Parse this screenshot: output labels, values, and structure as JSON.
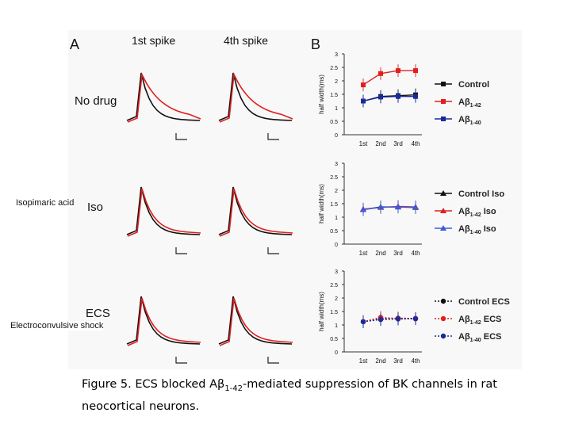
{
  "page": {
    "annotations": {
      "iso": "Isopimaric acid",
      "ecs": "Electroconvulsive shock"
    },
    "caption": {
      "prefix": "Figure 5. ECS blocked A",
      "beta": "β",
      "sub": "1-42",
      "suffix": "-mediated suppression of BK channels in rat",
      "line2": "neocortical neurons."
    }
  },
  "chart_data": [
    {
      "type": "line",
      "panel": "A",
      "description_labels": {
        "panel_letter": "A",
        "col1": "1st spike",
        "col2": "4th spike"
      },
      "row_labels": [
        "No drug",
        "Iso",
        "ECS"
      ],
      "note": "Example action potential waveforms (black = control, red = Aβ1-42)"
    },
    {
      "type": "line",
      "panel": "B1",
      "panel_letter": "B",
      "categories": [
        "1st",
        "2nd",
        "3rd",
        "4th"
      ],
      "ylabel": "half width(ms)",
      "ylim": [
        0,
        3
      ],
      "yticks": [
        "0",
        "0.5",
        "1",
        "1.5",
        "2",
        "2.5",
        "3"
      ],
      "series": [
        {
          "name": "Control",
          "name_main": "Control",
          "name_sub": "",
          "color": "#111111",
          "marker": "square",
          "dash": false,
          "values": [
            1.25,
            1.42,
            1.45,
            1.48
          ]
        },
        {
          "name": "Aβ1-42",
          "name_main": "Aβ",
          "name_sub": "1-42",
          "color": "#e02020",
          "marker": "square",
          "dash": false,
          "values": [
            1.85,
            2.27,
            2.38,
            2.38
          ]
        },
        {
          "name": "Aβ1-40",
          "name_main": "Aβ",
          "name_sub": "1-40",
          "color": "#1a2a9a",
          "marker": "square",
          "dash": false,
          "values": [
            1.25,
            1.4,
            1.42,
            1.42
          ]
        }
      ]
    },
    {
      "type": "line",
      "panel": "B2",
      "categories": [
        "1st",
        "2nd",
        "3rd",
        "4th"
      ],
      "ylabel": "half width(ms)",
      "ylim": [
        0,
        3
      ],
      "yticks": [
        "0",
        "0.5",
        "1",
        "1.5",
        "2",
        "2.5",
        "3"
      ],
      "series": [
        {
          "name": "Control Iso",
          "name_main": "Control Iso",
          "name_sub": "",
          "color": "#111111",
          "marker": "triangle",
          "dash": false,
          "values": [
            1.28,
            1.38,
            1.38,
            1.36
          ]
        },
        {
          "name": "Aβ1-42 Iso",
          "name_main": "Aβ",
          "name_sub": "1-42",
          "name_tail": "Iso",
          "color": "#e02020",
          "marker": "triangle",
          "dash": false,
          "values": [
            1.3,
            1.36,
            1.4,
            1.38
          ]
        },
        {
          "name": "Aβ1-40 Iso",
          "name_main": "Aβ",
          "name_sub": "1-40",
          "name_tail": "Iso",
          "color": "#3a5adf",
          "marker": "triangle",
          "dash": false,
          "values": [
            1.28,
            1.37,
            1.38,
            1.37
          ]
        }
      ]
    },
    {
      "type": "line",
      "panel": "B3",
      "categories": [
        "1st",
        "2nd",
        "3rd",
        "4th"
      ],
      "ylabel": "half width(ms)",
      "ylim": [
        0,
        3
      ],
      "yticks": [
        "0",
        "0.5",
        "1",
        "1.5",
        "2",
        "2.5",
        "3"
      ],
      "series": [
        {
          "name": "Control ECS",
          "name_main": "Control ECS",
          "name_sub": "",
          "color": "#111111",
          "marker": "circle",
          "dash": true,
          "values": [
            1.12,
            1.22,
            1.25,
            1.24
          ]
        },
        {
          "name": "Aβ1-42 ECS",
          "name_main": "Aβ",
          "name_sub": "1-42",
          "name_tail": "ECS",
          "color": "#e02020",
          "marker": "circle",
          "dash": true,
          "values": [
            1.12,
            1.28,
            1.24,
            1.24
          ]
        },
        {
          "name": "Aβ1-40 ECS",
          "name_main": "Aβ",
          "name_sub": "1-40",
          "name_tail": "ECS",
          "color": "#1a2a9a",
          "marker": "circle",
          "dash": true,
          "values": [
            1.12,
            1.2,
            1.22,
            1.23
          ]
        }
      ]
    }
  ]
}
